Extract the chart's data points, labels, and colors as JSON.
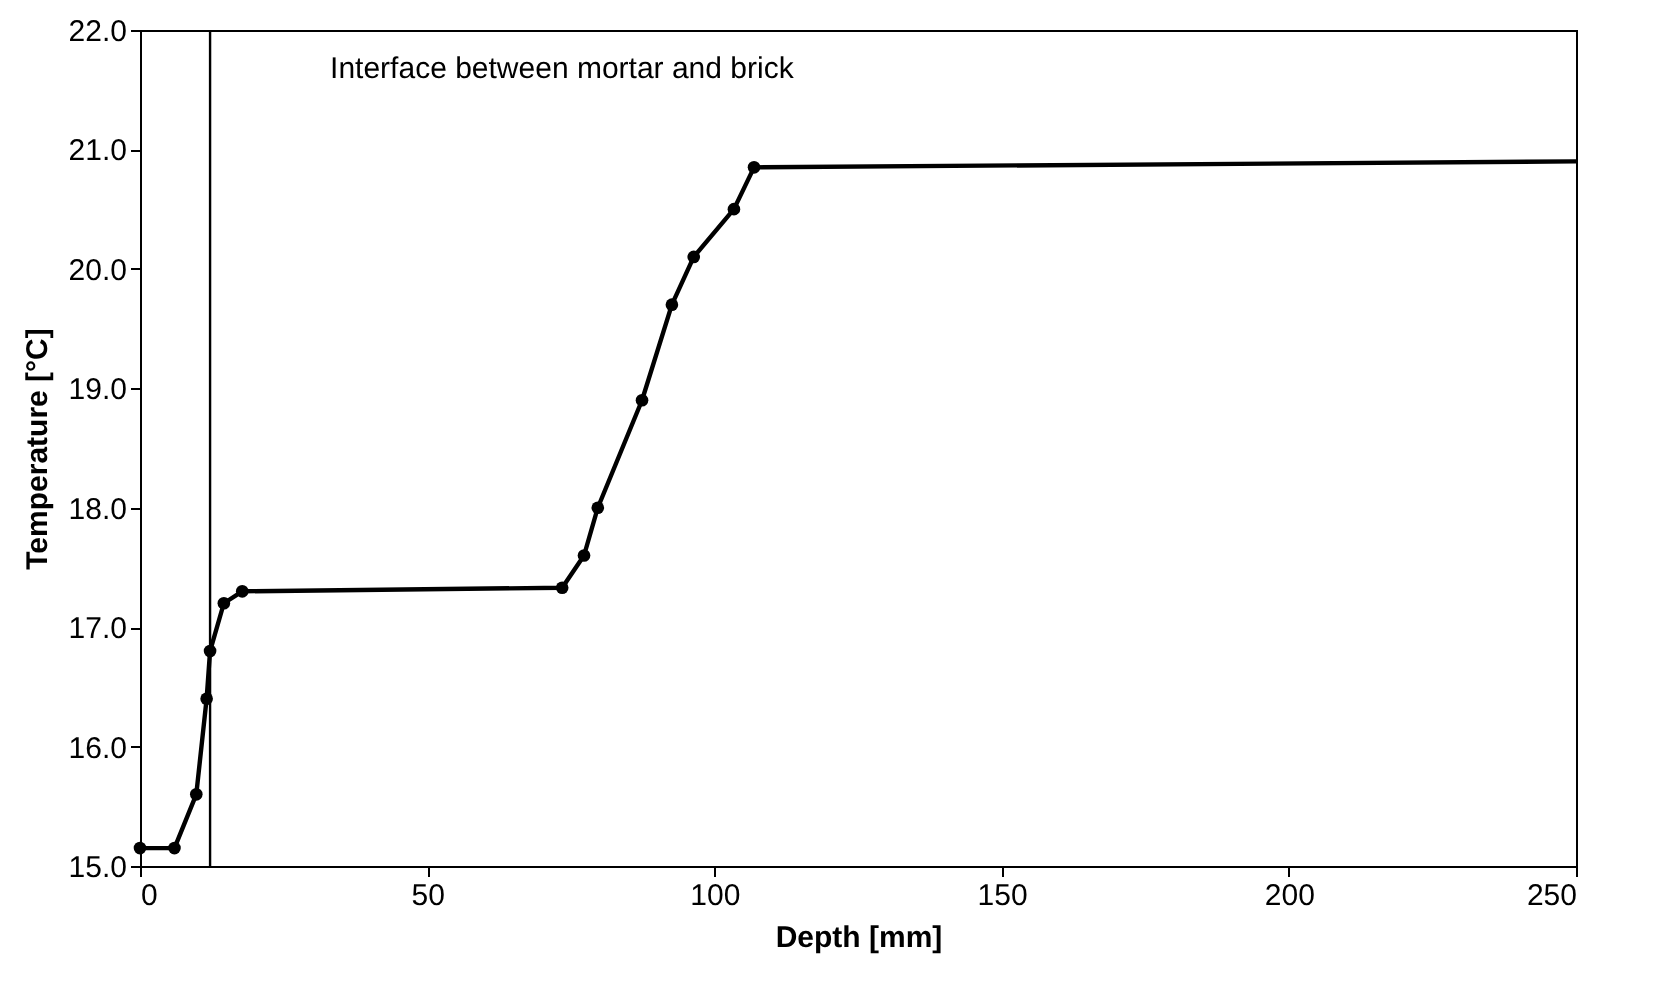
{
  "chart_data": {
    "type": "line",
    "xlabel": "Depth [mm]",
    "ylabel": "Temperature [°C]",
    "xlim": [
      0,
      250
    ],
    "xticks": [
      0,
      50,
      100,
      150,
      200,
      250
    ],
    "ylim": [
      15,
      22
    ],
    "yticks": [
      {
        "value": 15,
        "label": "15.0"
      },
      {
        "value": 16,
        "label": "16.0"
      },
      {
        "value": 17,
        "label": "17.0"
      },
      {
        "value": 18,
        "label": "18.0"
      },
      {
        "value": 19,
        "label": "19.0"
      },
      {
        "value": 20,
        "label": "20.0"
      },
      {
        "value": 21,
        "label": "21.0"
      },
      {
        "value": 22,
        "label": "22.0"
      }
    ],
    "grid": false,
    "series": [
      {
        "color": "#000000",
        "marker": "circle",
        "x": [
          0,
          6,
          9.8,
          11.6,
          12.2,
          14.6,
          17.8,
          73.5,
          77.3,
          79.7,
          87.4,
          92.6,
          96.4,
          103.4,
          106.9
        ],
        "values": [
          15.15,
          15.15,
          15.6,
          16.4,
          16.8,
          17.2,
          17.3,
          17.33,
          17.6,
          18.0,
          18.9,
          19.7,
          20.1,
          20.5,
          20.85
        ]
      },
      {
        "color": "#000000",
        "marker": "none",
        "x": [
          106.9,
          250
        ],
        "values": [
          20.85,
          20.9
        ]
      }
    ],
    "ref_lines": [
      {
        "axis": "x",
        "value": 12.2,
        "label": "Interface between mortar and brick",
        "color": "#000000"
      }
    ]
  }
}
